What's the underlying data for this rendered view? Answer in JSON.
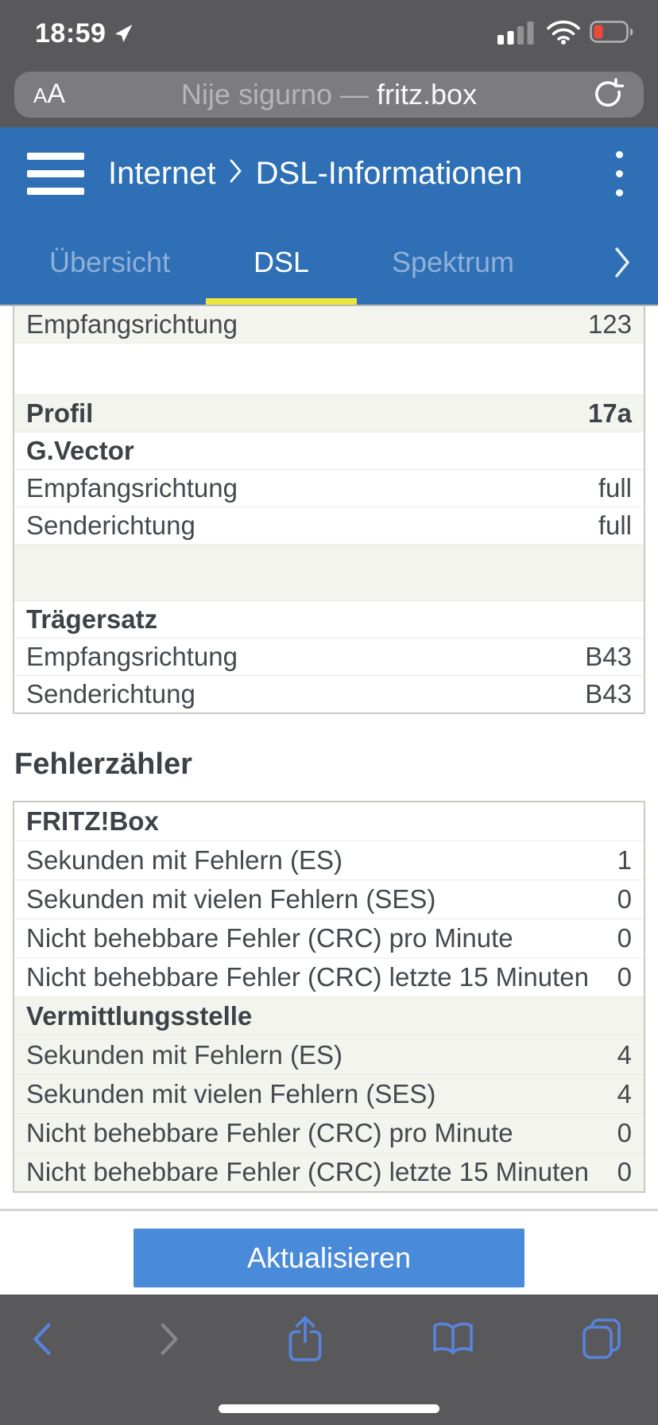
{
  "status_bar": {
    "time": "18:59"
  },
  "browser_chrome": {
    "reader_button": "AA",
    "url_security_prefix": "Nije sigurno —",
    "url_host": "fritz.box"
  },
  "app_header": {
    "breadcrumb": {
      "section": "Internet",
      "page": "DSL-Informationen"
    },
    "tabs": [
      {
        "label": "Übersicht",
        "active": false
      },
      {
        "label": "DSL",
        "active": true
      },
      {
        "label": "Spektrum",
        "active": false
      }
    ]
  },
  "dsl_table": {
    "rows": [
      {
        "type": "data",
        "shade": "gray",
        "label": "Empfangsrichtung",
        "value": "123"
      },
      {
        "type": "spacer",
        "shade": "white"
      },
      {
        "type": "data",
        "shade": "gray",
        "bold": true,
        "label": "Profil",
        "value": "17a"
      },
      {
        "type": "header",
        "shade": "white",
        "bold": true,
        "label": "G.Vector",
        "value": ""
      },
      {
        "type": "data",
        "shade": "white",
        "label": "Empfangsrichtung",
        "value": "full"
      },
      {
        "type": "data",
        "shade": "white",
        "label": "Senderichtung",
        "value": "full"
      },
      {
        "type": "spacer",
        "shade": "gray"
      },
      {
        "type": "header",
        "shade": "white",
        "bold": true,
        "label": "Trägersatz",
        "value": ""
      },
      {
        "type": "data",
        "shade": "white",
        "label": "Empfangsrichtung",
        "value": "B43"
      },
      {
        "type": "data",
        "shade": "white",
        "label": "Senderichtung",
        "value": "B43"
      }
    ]
  },
  "error_section": {
    "heading": "Fehlerzähler",
    "table": {
      "rows": [
        {
          "type": "header",
          "shade": "white",
          "bold": true,
          "label": "FRITZ!Box",
          "value": ""
        },
        {
          "type": "data",
          "shade": "white",
          "label": "Sekunden mit Fehlern (ES)",
          "value": "1"
        },
        {
          "type": "data",
          "shade": "white",
          "label": "Sekunden mit vielen Fehlern (SES)",
          "value": "0"
        },
        {
          "type": "data",
          "shade": "white",
          "label": "Nicht behebbare Fehler (CRC) pro Minute",
          "value": "0"
        },
        {
          "type": "data",
          "shade": "white",
          "label": "Nicht behebbare Fehler (CRC) letzte 15 Minuten",
          "value": "0"
        },
        {
          "type": "header",
          "shade": "gray",
          "bold": true,
          "label": "Vermittlungsstelle",
          "value": ""
        },
        {
          "type": "data",
          "shade": "gray",
          "label": "Sekunden mit Fehlern (ES)",
          "value": "4"
        },
        {
          "type": "data",
          "shade": "gray",
          "label": "Sekunden mit vielen Fehlern (SES)",
          "value": "4"
        },
        {
          "type": "data",
          "shade": "gray",
          "label": "Nicht behebbare Fehler (CRC) pro Minute",
          "value": "0"
        },
        {
          "type": "data",
          "shade": "gray",
          "label": "Nicht behebbare Fehler (CRC) letzte 15 Minuten",
          "value": "0"
        }
      ]
    }
  },
  "actions": {
    "refresh_label": "Aktualisieren"
  },
  "colors": {
    "chrome_gray": "#59595b",
    "url_pill_gray": "#7b7b80",
    "header_blue": "#2e6fb6",
    "inactive_tab_blue": "#8fb0d8",
    "active_tab_underline_yellow": "#ece33c",
    "table_row_gray": "#f4f4ef",
    "table_border": "#c9c9c2",
    "text_dark_gray": "#43494e",
    "refresh_button_blue": "#4a8bd9",
    "toolbar_icon_blue": "#5784dd",
    "battery_low_red": "#eb4a3c"
  }
}
